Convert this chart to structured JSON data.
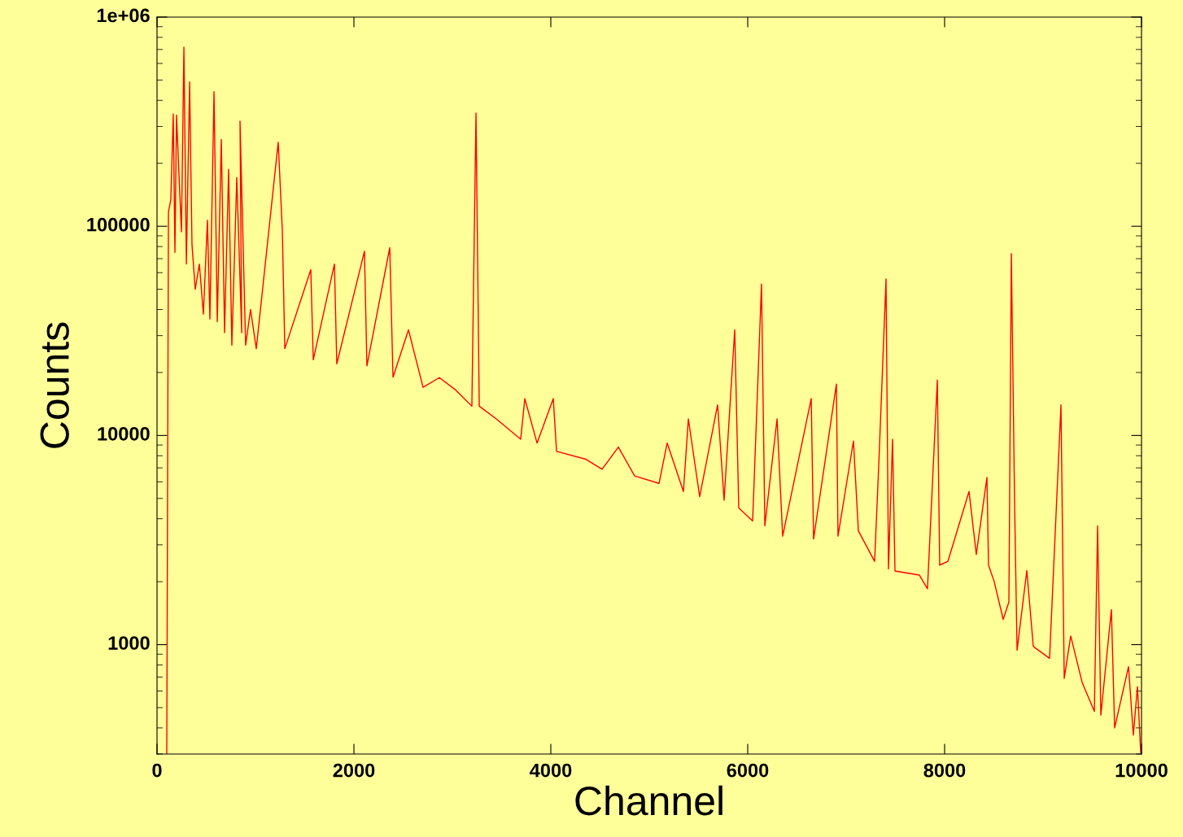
{
  "chart_data": {
    "type": "line",
    "xlabel": "Channel",
    "ylabel": "Counts",
    "log": "y",
    "xlim": [
      0,
      10000
    ],
    "xticks": [
      0,
      2000,
      4000,
      6000,
      8000,
      10000
    ],
    "ylim": [
      300,
      1000000
    ],
    "yticks": [
      1000,
      10000,
      100000,
      {
        "value": 1000000,
        "label": "1e+06"
      }
    ],
    "x": [
      99,
      116,
      140,
      165,
      182,
      198,
      223,
      248,
      273,
      298,
      331,
      355,
      388,
      430,
      471,
      512,
      537,
      579,
      612,
      653,
      686,
      727,
      760,
      810,
      860,
      843,
      900,
      950,
      1008,
      1231,
      1273,
      1298,
      1562,
      1587,
      1802,
      1826,
      2107,
      2132,
      2364,
      2397,
      2554,
      2702,
      2868,
      3033,
      3198,
      3240,
      3273,
      3446,
      3694,
      3736,
      3860,
      4025,
      4058,
      4355,
      4521,
      4686,
      4851,
      5099,
      5182,
      5347,
      5397,
      5512,
      5694,
      5760,
      5868,
      5909,
      6050,
      6140,
      6174,
      6298,
      6355,
      6645,
      6669,
      6901,
      6917,
      7074,
      7124,
      7289,
      7331,
      7405,
      7430,
      7471,
      7496,
      7744,
      7826,
      7926,
      7950,
      8033,
      8248,
      8322,
      8430,
      8446,
      8504,
      8595,
      8653,
      8678,
      8711,
      8736,
      8835,
      8901,
      9066,
      9182,
      9215,
      9281,
      9397,
      9521,
      9554,
      9587,
      9694,
      9727,
      9868,
      9917,
      9959,
      9992
    ],
    "series": [
      {
        "color": "#ff0000",
        "values": [
          300,
          117000,
          134000,
          344000,
          75000,
          340000,
          176000,
          94000,
          718000,
          66000,
          490000,
          82000,
          50000,
          66000,
          38000,
          107000,
          36000,
          440000,
          35000,
          260000,
          31000,
          187000,
          27000,
          171000,
          31000,
          318000,
          27000,
          40000,
          26000,
          252000,
          95000,
          26000,
          62000,
          23000,
          66000,
          22000,
          76000,
          21500,
          79000,
          19000,
          32000,
          17000,
          18900,
          16500,
          13800,
          348000,
          13800,
          12000,
          9600,
          15000,
          9200,
          15000,
          8400,
          7700,
          6900,
          8800,
          6400,
          5900,
          9200,
          5400,
          12000,
          5100,
          14000,
          4900,
          32000,
          4500,
          3900,
          53000,
          3700,
          12000,
          3300,
          15000,
          3200,
          17600,
          3300,
          9400,
          3500,
          2500,
          7200,
          56000,
          2300,
          9600,
          2250,
          2150,
          1850,
          18400,
          2400,
          2500,
          5400,
          2700,
          6300,
          2400,
          2000,
          1320,
          1600,
          74000,
          4700,
          940,
          2260,
          980,
          860,
          14000,
          690,
          1100,
          660,
          480,
          3700,
          460,
          1470,
          400,
          785,
          370,
          630,
          305
        ]
      }
    ]
  }
}
